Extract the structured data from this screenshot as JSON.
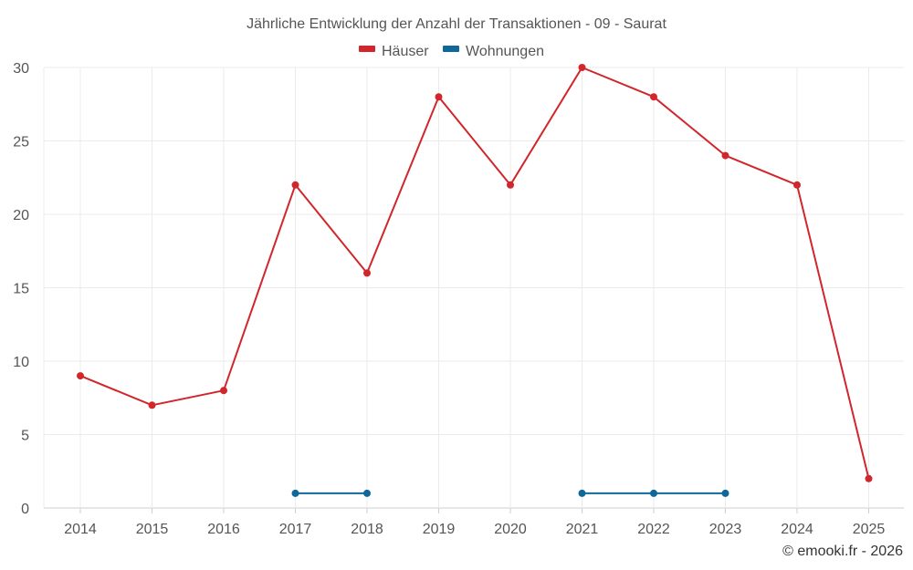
{
  "chart_data": {
    "type": "line",
    "title": "Jährliche Entwicklung der Anzahl der Transaktionen - 09 - Saurat",
    "categories": [
      "2014",
      "2015",
      "2016",
      "2017",
      "2018",
      "2019",
      "2020",
      "2021",
      "2022",
      "2023",
      "2024",
      "2025"
    ],
    "yticks": [
      "0",
      "5",
      "10",
      "15",
      "20",
      "25",
      "30"
    ],
    "ylim": [
      0,
      30
    ],
    "grid": true,
    "legend_position": "top-center",
    "series": [
      {
        "name": "Häuser",
        "color": "#d0262c",
        "values": [
          9,
          7,
          8,
          22,
          16,
          28,
          22,
          30,
          28,
          24,
          22,
          2
        ]
      },
      {
        "name": "Wohnungen",
        "color": "#0f6899",
        "values": [
          null,
          null,
          null,
          1,
          1,
          null,
          null,
          1,
          1,
          1,
          null,
          null
        ]
      }
    ],
    "credit": "© emooki.fr - 2026"
  }
}
